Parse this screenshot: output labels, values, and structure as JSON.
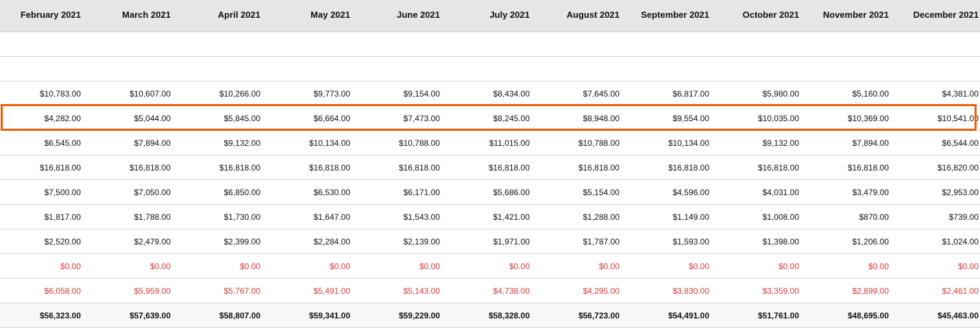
{
  "table": {
    "columns": [
      "February 2021",
      "March 2021",
      "April 2021",
      "May 2021",
      "June 2021",
      "July 2021",
      "August 2021",
      "September 2021",
      "October 2021",
      "November 2021",
      "December 2021"
    ],
    "rows": [
      [
        "",
        "",
        "",
        "",
        "",
        "",
        "",
        "",
        "",
        "",
        ""
      ],
      [
        "",
        "",
        "",
        "",
        "",
        "",
        "",
        "",
        "",
        "",
        ""
      ],
      [
        "$10,783.00",
        "$10,607.00",
        "$10,266.00",
        "$9,773.00",
        "$9,154.00",
        "$8,434.00",
        "$7,645.00",
        "$6,817.00",
        "$5,980.00",
        "$5,160.00",
        "$4,381.00"
      ],
      [
        "$4,282.00",
        "$5,044.00",
        "$5,845.00",
        "$6,664.00",
        "$7,473.00",
        "$8,245.00",
        "$8,948.00",
        "$9,554.00",
        "$10,035.00",
        "$10,369.00",
        "$10,541.00"
      ],
      [
        "$6,545.00",
        "$7,894.00",
        "$9,132.00",
        "$10,134.00",
        "$10,788.00",
        "$11,015.00",
        "$10,788.00",
        "$10,134.00",
        "$9,132.00",
        "$7,894.00",
        "$6,544.00"
      ],
      [
        "$16,818.00",
        "$16,818.00",
        "$16,818.00",
        "$16,818.00",
        "$16,818.00",
        "$16,818.00",
        "$16,818.00",
        "$16,818.00",
        "$16,818.00",
        "$16,818.00",
        "$16,820.00"
      ],
      [
        "$7,500.00",
        "$7,050.00",
        "$6,850.00",
        "$6,530.00",
        "$6,171.00",
        "$5,686.00",
        "$5,154.00",
        "$4,596.00",
        "$4,031.00",
        "$3,479.00",
        "$2,953.00"
      ],
      [
        "$1,817.00",
        "$1,788.00",
        "$1,730.00",
        "$1,647.00",
        "$1,543.00",
        "$1,421.00",
        "$1,288.00",
        "$1,149.00",
        "$1,008.00",
        "$870.00",
        "$739.00"
      ],
      [
        "$2,520.00",
        "$2,479.00",
        "$2,399.00",
        "$2,284.00",
        "$2,139.00",
        "$1,971.00",
        "$1,787.00",
        "$1,593.00",
        "$1,398.00",
        "$1,206.00",
        "$1,024.00"
      ],
      [
        "$0.00",
        "$0.00",
        "$0.00",
        "$0.00",
        "$0.00",
        "$0.00",
        "$0.00",
        "$0.00",
        "$0.00",
        "$0.00",
        "$0.00"
      ],
      [
        "$6,058.00",
        "$5,959.00",
        "$5,767.00",
        "$5,491.00",
        "$5,143.00",
        "$4,738.00",
        "$4,295.00",
        "$3,830.00",
        "$3,359.00",
        "$2,899.00",
        "$2,461.00"
      ]
    ],
    "totals": [
      "$56,323.00",
      "$57,639.00",
      "$58,807.00",
      "$59,341.00",
      "$59,229.00",
      "$58,328.00",
      "$56,723.00",
      "$54,491.00",
      "$51,761.00",
      "$48,695.00",
      "$45,463.00"
    ],
    "negative_color": "#d63b3b",
    "highlight_color": "#f25c05"
  }
}
